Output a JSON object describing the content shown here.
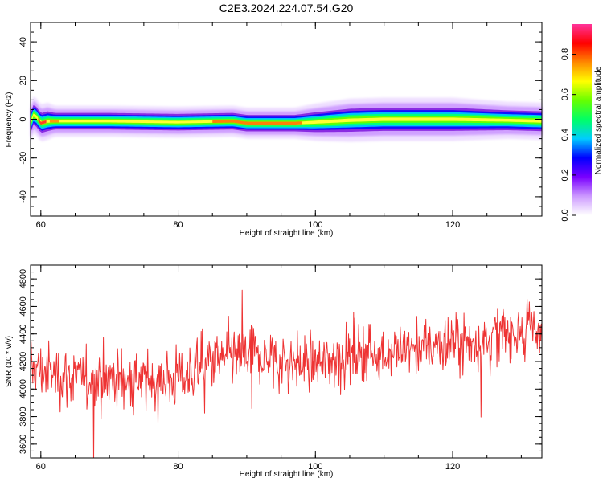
{
  "figure_title": "C2E3.2024.224.07.54.G20",
  "chart_data": [
    {
      "type": "heatmap",
      "xlabel": "Height of straight line (km)",
      "ylabel": "Frequency (Hz)",
      "xlim": [
        58.5,
        133
      ],
      "ylim": [
        -50,
        50
      ],
      "xticks": [
        60,
        80,
        100,
        120
      ],
      "yticks": [
        40,
        20,
        0,
        -20,
        -40
      ],
      "grid": false,
      "colorbar": {
        "label": "Normalized spectral amplitude",
        "range": [
          0,
          0.95
        ],
        "ticks": [
          0.0,
          0.2,
          0.4,
          0.6,
          0.8
        ],
        "colormap": [
          "#ffffff",
          "#cc99ff",
          "#7a00ff",
          "#0000ff",
          "#00ccff",
          "#00ff66",
          "#66ff00",
          "#ffff00",
          "#ff8800",
          "#ff0000",
          "#ff3399"
        ]
      },
      "ridge": {
        "x": [
          58.5,
          59,
          60,
          61,
          62,
          70,
          80,
          88,
          90,
          97,
          100,
          105,
          110,
          120,
          128,
          133
        ],
        "center_hz": [
          -2,
          3,
          -2,
          -1,
          -1,
          -1,
          -1.5,
          -1,
          -2,
          -2,
          -1.5,
          -0.5,
          0,
          0,
          -0.5,
          -1
        ],
        "halfwidth_hz": [
          3,
          3,
          3,
          3,
          2.5,
          2.5,
          2.5,
          2.5,
          2.5,
          2.5,
          3,
          3.5,
          3.5,
          3.5,
          3,
          3
        ]
      }
    },
    {
      "type": "line",
      "xlabel": "Height of straight line (km)",
      "ylabel": "SNR (10 * v/v)",
      "xlim": [
        58.5,
        133
      ],
      "ylim": [
        3500,
        4900
      ],
      "xticks": [
        60,
        80,
        100,
        120
      ],
      "yticks": [
        3600,
        3800,
        4000,
        4200,
        4400,
        4600,
        4800
      ],
      "grid": false,
      "series": [
        {
          "color": "#ee3333",
          "trend_x": [
            58.5,
            65,
            70,
            75,
            80,
            85,
            90,
            95,
            100,
            105,
            110,
            115,
            120,
            125,
            130,
            133
          ],
          "trend_y": [
            4150,
            4080,
            4080,
            4050,
            4080,
            4200,
            4250,
            4200,
            4180,
            4250,
            4270,
            4300,
            4330,
            4360,
            4440,
            4430
          ],
          "noise_sd": 150,
          "points": 900
        }
      ]
    }
  ]
}
